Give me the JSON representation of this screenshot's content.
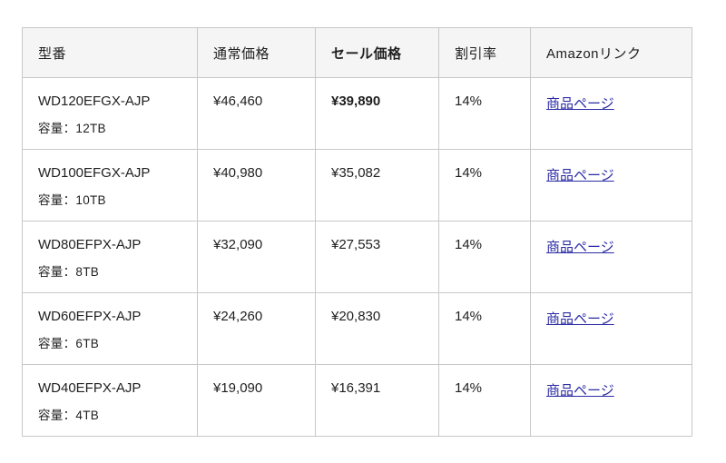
{
  "table": {
    "headers": {
      "model": "型番",
      "regular_price": "通常価格",
      "sale_price": "セール価格",
      "discount": "割引率",
      "amazon_link": "Amazonリンク"
    },
    "rows": [
      {
        "model": "WD120EFGX-AJP",
        "capacity": "容量：12TB",
        "regular_price": "¥46,460",
        "sale_price": "¥39,890",
        "discount": "14%",
        "link_label": "商品ページ"
      },
      {
        "model": "WD100EFGX-AJP",
        "capacity": "容量：10TB",
        "regular_price": "¥40,980",
        "sale_price": "¥35,082",
        "discount": "14%",
        "link_label": "商品ページ"
      },
      {
        "model": "WD80EFPX-AJP",
        "capacity": "容量：8TB",
        "regular_price": "¥32,090",
        "sale_price": "¥27,553",
        "discount": "14%",
        "link_label": "商品ページ"
      },
      {
        "model": "WD60EFPX-AJP",
        "capacity": "容量：6TB",
        "regular_price": "¥24,260",
        "sale_price": "¥20,830",
        "discount": "14%",
        "link_label": "商品ページ"
      },
      {
        "model": "WD40EFPX-AJP",
        "capacity": "容量：4TB",
        "regular_price": "¥19,090",
        "sale_price": "¥16,391",
        "discount": "14%",
        "link_label": "商品ページ"
      }
    ]
  },
  "colors": {
    "link": "#2b2ba6",
    "header_background": "#f5f5f5",
    "border": "#c8c8c8",
    "text": "#1f1f1f",
    "page_background": "#ffffff"
  }
}
